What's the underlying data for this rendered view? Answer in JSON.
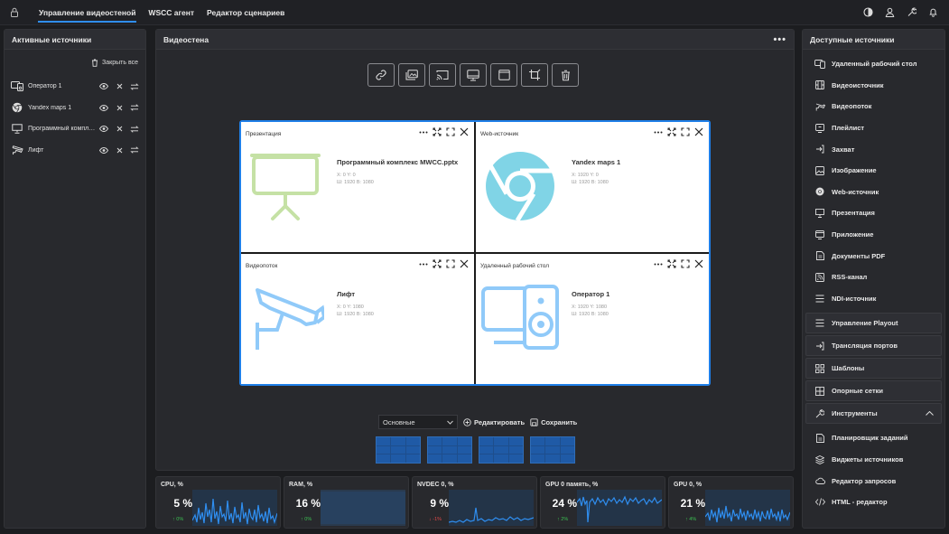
{
  "topbar": {
    "tabs": [
      {
        "label": "Управление видеостеной",
        "active": true
      },
      {
        "label": "WSCC агент",
        "active": false
      },
      {
        "label": "Редактор сценариев",
        "active": false
      }
    ],
    "icons": [
      "lock-icon",
      "theme-icon",
      "user-icon",
      "wrench-icon",
      "bell-icon"
    ]
  },
  "left": {
    "title": "Активные источники",
    "close_all": "Закрыть все",
    "items": [
      {
        "label": "Оператор 1",
        "icon": "remote-desktop-icon"
      },
      {
        "label": "Yandex maps 1",
        "icon": "chrome-icon"
      },
      {
        "label": "Программный комплекс ...",
        "icon": "presentation-icon"
      },
      {
        "label": "Лифт",
        "icon": "camera-icon"
      }
    ]
  },
  "center": {
    "title": "Видеостена",
    "more": "•••",
    "toolbar": [
      "link-icon",
      "image-icon",
      "cast-icon",
      "monitor-icon",
      "window-icon",
      "crop-icon",
      "trash-icon"
    ],
    "cells": [
      {
        "type": "Презентация",
        "name": "Программный комплекс MWCC.pptx",
        "xy": "X: 0 Y: 0",
        "wh": "Ш: 1920 В: 1080"
      },
      {
        "type": "Web-источник",
        "name": "Yandex maps 1",
        "xy": "X: 1920 Y: 0",
        "wh": "Ш: 1920 В: 1080"
      },
      {
        "type": "Видеопоток",
        "name": "Лифт",
        "xy": "X: 0 Y: 1080",
        "wh": "Ш: 1920 В: 1080"
      },
      {
        "type": "Удаленный рабочий стол",
        "name": "Оператор 1",
        "xy": "X: 1920 Y: 1080",
        "wh": "Ш: 1920 В: 1080"
      }
    ],
    "layout_select": "Основные",
    "edit_label": "Редактировать",
    "save_label": "Сохранить"
  },
  "stats": [
    {
      "label": "CPU, %",
      "value": "5 %",
      "delta": "↑ 0%",
      "dir": "up"
    },
    {
      "label": "RAM, %",
      "value": "16 %",
      "delta": "↑ 0%",
      "dir": "up"
    },
    {
      "label": "NVDEC 0, %",
      "value": "9 %",
      "delta": "↓ -1%",
      "dir": "down"
    },
    {
      "label": "GPU 0 память, %",
      "value": "24 %",
      "delta": "↑ 2%",
      "dir": "up"
    },
    {
      "label": "GPU 0, %",
      "value": "21 %",
      "delta": "↑ 4%",
      "dir": "up"
    }
  ],
  "right": {
    "title": "Доступные источники",
    "items": [
      {
        "label": "Удаленный рабочий стол",
        "icon": "remote-desktop-icon"
      },
      {
        "label": "Видеоисточник",
        "icon": "film-icon"
      },
      {
        "label": "Видеопоток",
        "icon": "camera-icon"
      },
      {
        "label": "Плейлист",
        "icon": "playlist-icon"
      },
      {
        "label": "Захват",
        "icon": "capture-icon"
      },
      {
        "label": "Изображение",
        "icon": "image-icon"
      },
      {
        "label": "Web-источник",
        "icon": "chrome-icon"
      },
      {
        "label": "Презентация",
        "icon": "presentation-icon"
      },
      {
        "label": "Приложение",
        "icon": "app-icon"
      },
      {
        "label": "Документы PDF",
        "icon": "pdf-icon"
      },
      {
        "label": "RSS-канал",
        "icon": "rss-icon"
      },
      {
        "label": "NDI-источник",
        "icon": "ndi-icon"
      }
    ],
    "groups": [
      {
        "label": "Управление Playout",
        "icon": "playout-icon"
      },
      {
        "label": "Трансляция портов",
        "icon": "port-icon"
      },
      {
        "label": "Шаблоны",
        "icon": "templates-icon"
      },
      {
        "label": "Опорные сетки",
        "icon": "grid-icon"
      },
      {
        "label": "Инструменты",
        "icon": "tools-icon"
      }
    ],
    "tools": [
      {
        "label": "Планировщик заданий",
        "icon": "scheduler-icon"
      },
      {
        "label": "Виджеты источников",
        "icon": "widgets-icon"
      },
      {
        "label": "Редактор запросов",
        "icon": "cloud-icon"
      },
      {
        "label": "HTML - редактор",
        "icon": "code-icon"
      }
    ]
  }
}
